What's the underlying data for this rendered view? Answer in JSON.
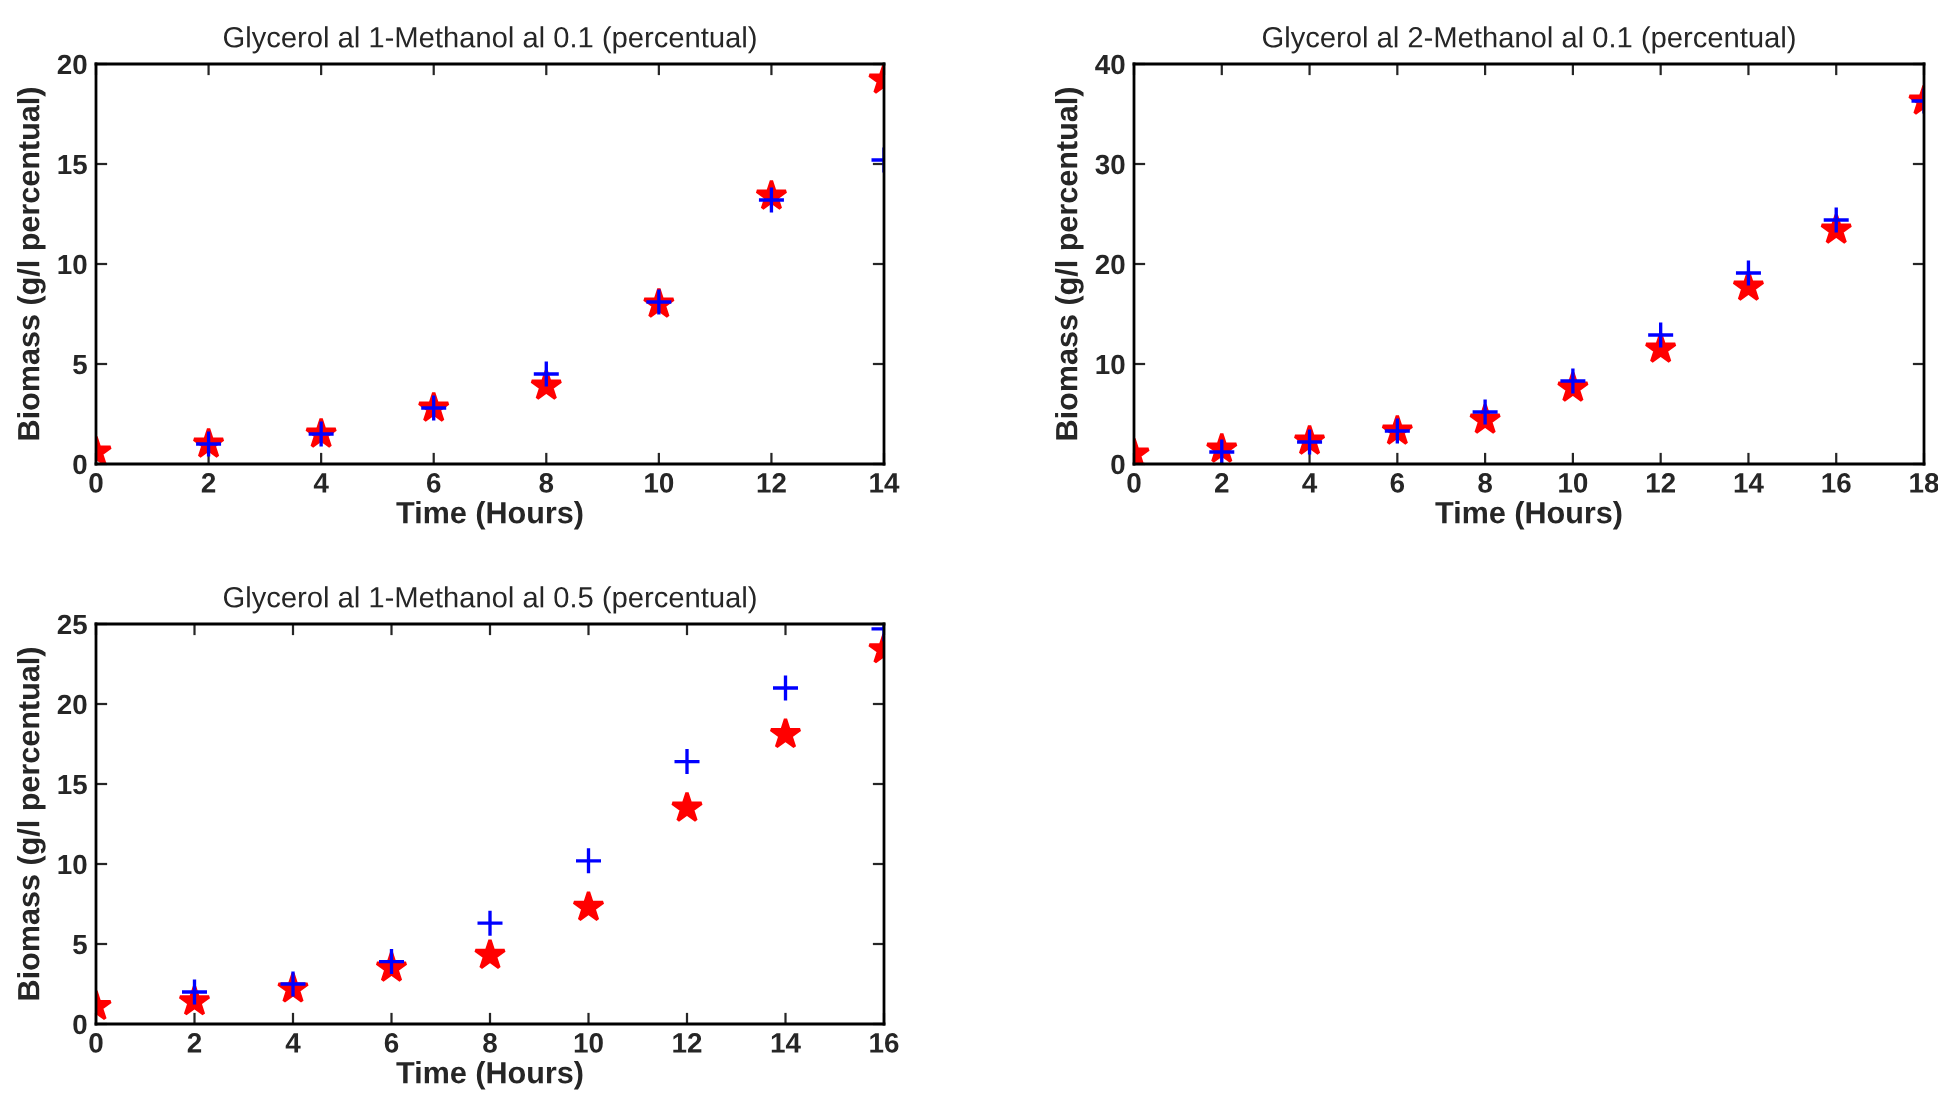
{
  "chart_data": [
    {
      "type": "scatter",
      "title": "Glycerol al 1-Methanol al 0.1 (percentual)",
      "xlabel": "Time (Hours)",
      "ylabel": "Biomass (g/l percentual)",
      "xlim": [
        0,
        14
      ],
      "xticks": [
        0,
        2,
        4,
        6,
        8,
        10,
        12,
        14
      ],
      "ylim": [
        0,
        20
      ],
      "yticks": [
        0,
        5,
        10,
        15,
        20
      ],
      "grid": false,
      "legend": false,
      "series": [
        {
          "color": "#ff0000",
          "marker": "star",
          "x": [
            0,
            2,
            4,
            6,
            8,
            10,
            12,
            14
          ],
          "values": [
            0.6,
            1.0,
            1.5,
            2.8,
            3.9,
            8.0,
            13.4,
            19.2
          ]
        },
        {
          "color": "#0000ff",
          "marker": "cross",
          "x": [
            2,
            4,
            6,
            8,
            10,
            12,
            14
          ],
          "values": [
            1.0,
            1.5,
            2.8,
            4.5,
            8.1,
            13.2,
            15.2
          ]
        }
      ]
    },
    {
      "type": "scatter",
      "title": "Glycerol al 2-Methanol al 0.1 (percentual)",
      "xlabel": "Time (Hours)",
      "ylabel": "Biomass (g/l percentual)",
      "xlim": [
        0,
        18
      ],
      "xticks": [
        0,
        2,
        4,
        6,
        8,
        10,
        12,
        14,
        16,
        18
      ],
      "ylim": [
        0,
        40
      ],
      "yticks": [
        0,
        10,
        20,
        30,
        40
      ],
      "grid": false,
      "legend": false,
      "series": [
        {
          "color": "#ff0000",
          "marker": "star",
          "x": [
            0,
            2,
            4,
            6,
            8,
            10,
            12,
            14,
            16,
            18
          ],
          "values": [
            1.0,
            1.5,
            2.3,
            3.3,
            4.4,
            7.6,
            11.5,
            17.7,
            23.4,
            36.3
          ]
        },
        {
          "color": "#0000ff",
          "marker": "cross",
          "x": [
            2,
            4,
            6,
            8,
            10,
            12,
            14,
            16,
            18
          ],
          "values": [
            1.2,
            2.2,
            3.3,
            5.2,
            8.3,
            12.9,
            19.1,
            24.4,
            36.3
          ]
        }
      ]
    },
    {
      "type": "scatter",
      "title": "Glycerol al 1-Methanol al 0.5 (percentual)",
      "xlabel": "Time (Hours)",
      "ylabel": "Biomass (g/l percentual)",
      "xlim": [
        0,
        16
      ],
      "xticks": [
        0,
        2,
        4,
        6,
        8,
        10,
        12,
        14,
        16
      ],
      "ylim": [
        0,
        25
      ],
      "yticks": [
        0,
        5,
        10,
        15,
        20,
        25
      ],
      "grid": false,
      "legend": false,
      "series": [
        {
          "color": "#ff0000",
          "marker": "star",
          "x": [
            0,
            2,
            4,
            6,
            8,
            10,
            12,
            14,
            16
          ],
          "values": [
            1.1,
            1.4,
            2.2,
            3.5,
            4.3,
            7.3,
            13.5,
            18.1,
            23.4
          ]
        },
        {
          "color": "#0000ff",
          "marker": "cross",
          "x": [
            2,
            4,
            6,
            8,
            10,
            12,
            14,
            16
          ],
          "values": [
            2.0,
            2.5,
            3.9,
            6.3,
            10.2,
            16.4,
            21.0,
            24.7
          ]
        }
      ]
    }
  ]
}
